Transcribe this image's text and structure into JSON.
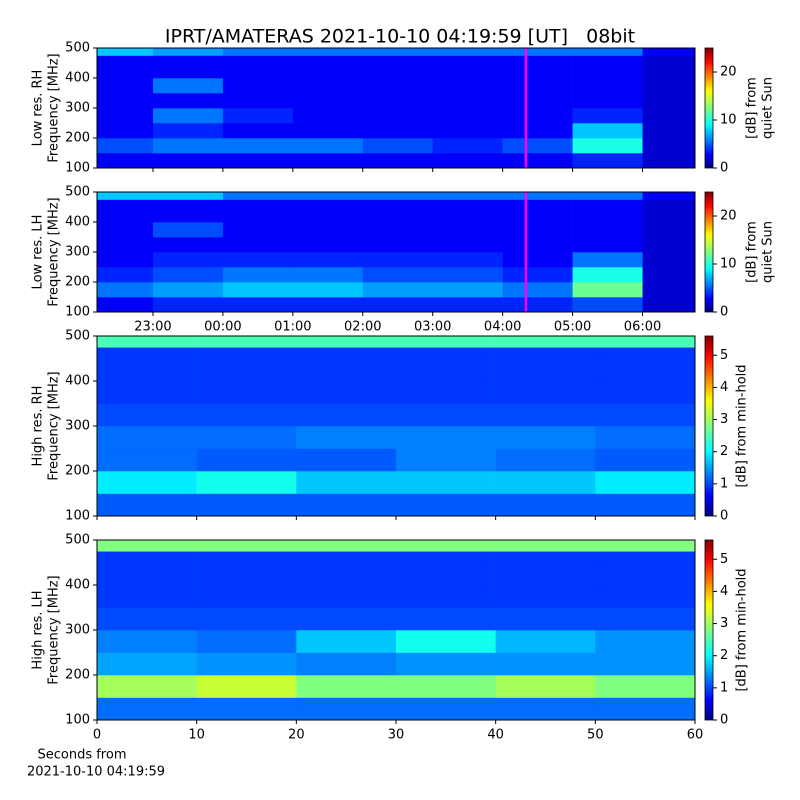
{
  "title": "IPRT/AMATERAS 2021-10-10 04:19:59 [UT]   08bit",
  "xlabel": [
    "Seconds from",
    "2021-10-10 04:19:59"
  ],
  "chart_data": [
    {
      "type": "heatmap",
      "ylabel": [
        "Low res. RH",
        "Frequency [MHz]"
      ],
      "colorbar_label": [
        "[dB] from",
        "quiet Sun"
      ],
      "xlim": [
        22.2,
        30.75
      ],
      "xticks": [
        23,
        24,
        25,
        26,
        27,
        28,
        29,
        30
      ],
      "xtick_labels": false,
      "ylim": [
        100,
        500
      ],
      "yticks": [
        100,
        200,
        300,
        400,
        500
      ],
      "clim": [
        0,
        25
      ],
      "cticks": [
        0,
        10,
        20
      ],
      "colormap": "jet",
      "vline_x": 28.333,
      "vline_color": "#ff00ff",
      "x_edges": [
        22.2,
        23,
        24,
        25,
        26,
        27,
        28,
        29,
        30,
        30.75
      ],
      "y_edges": [
        100,
        150,
        200,
        250,
        300,
        350,
        400,
        450,
        475,
        500
      ],
      "z": [
        [
          3,
          3,
          3,
          3,
          3,
          3,
          3,
          4,
          2
        ],
        [
          5,
          6,
          6,
          6,
          5,
          4,
          5,
          10,
          2
        ],
        [
          3,
          4,
          3,
          3,
          3,
          3,
          3,
          8,
          2
        ],
        [
          3,
          6,
          4,
          3,
          3,
          3,
          3,
          4,
          2
        ],
        [
          3,
          3,
          3,
          3,
          3,
          3,
          3,
          3,
          2
        ],
        [
          3,
          6,
          3,
          3,
          3,
          3,
          3,
          3,
          2
        ],
        [
          3,
          3,
          3,
          3,
          3,
          3,
          3,
          3,
          2
        ],
        [
          3,
          3,
          3,
          3,
          3,
          3,
          3,
          3,
          2
        ],
        [
          8,
          7,
          6,
          6,
          6,
          6,
          6,
          6,
          3
        ]
      ]
    },
    {
      "type": "heatmap",
      "ylabel": [
        "Low res. LH",
        "Frequency [MHz]"
      ],
      "colorbar_label": [
        "[dB] from",
        "quiet Sun"
      ],
      "xlim": [
        22.2,
        30.75
      ],
      "xticks": [
        {
          "value": 23,
          "label": "23:00"
        },
        {
          "value": 24,
          "label": "00:00"
        },
        {
          "value": 25,
          "label": "01:00"
        },
        {
          "value": 26,
          "label": "02:00"
        },
        {
          "value": 27,
          "label": "03:00"
        },
        {
          "value": 28,
          "label": "04:00"
        },
        {
          "value": 29,
          "label": "05:00"
        },
        {
          "value": 30,
          "label": "06:00"
        }
      ],
      "xtick_labels": true,
      "ylim": [
        100,
        500
      ],
      "yticks": [
        100,
        200,
        300,
        400,
        500
      ],
      "clim": [
        0,
        25
      ],
      "cticks": [
        0,
        10,
        20
      ],
      "colormap": "jet",
      "vline_x": 28.333,
      "vline_color": "#ff00ff",
      "x_edges": [
        22.2,
        23,
        24,
        25,
        26,
        27,
        28,
        29,
        30,
        30.75
      ],
      "y_edges": [
        100,
        150,
        200,
        250,
        300,
        350,
        400,
        450,
        475,
        500
      ],
      "z": [
        [
          3,
          4,
          4,
          4,
          4,
          4,
          4,
          5,
          2
        ],
        [
          6,
          7,
          8,
          8,
          7,
          7,
          6,
          12,
          2
        ],
        [
          4,
          5,
          6,
          6,
          5,
          5,
          4,
          10,
          2
        ],
        [
          3,
          4,
          4,
          4,
          4,
          4,
          3,
          6,
          2
        ],
        [
          3,
          3,
          3,
          3,
          3,
          3,
          3,
          3,
          2
        ],
        [
          3,
          5,
          3,
          3,
          3,
          3,
          3,
          3,
          2
        ],
        [
          3,
          3,
          3,
          3,
          3,
          3,
          3,
          3,
          2
        ],
        [
          3,
          3,
          3,
          3,
          3,
          3,
          3,
          3,
          2
        ],
        [
          8,
          8,
          6,
          6,
          6,
          6,
          6,
          6,
          3
        ]
      ]
    },
    {
      "type": "heatmap",
      "ylabel": [
        "High res. RH",
        "Frequency [MHz]"
      ],
      "colorbar_label": [
        "[dB] from min-hold"
      ],
      "xlim": [
        0,
        60
      ],
      "xticks": [
        0,
        10,
        20,
        30,
        40,
        50,
        60
      ],
      "xtick_labels": false,
      "ylim": [
        100,
        500
      ],
      "yticks": [
        100,
        200,
        300,
        400,
        500
      ],
      "clim": [
        0,
        5.6
      ],
      "cticks": [
        0,
        1,
        2,
        3,
        4,
        5
      ],
      "colormap": "jet",
      "x_edges": [
        0,
        10,
        20,
        30,
        40,
        50,
        60
      ],
      "y_edges": [
        100,
        150,
        200,
        250,
        300,
        350,
        400,
        450,
        475,
        500
      ],
      "z": [
        [
          1.2,
          1.2,
          1.2,
          1.2,
          1.2,
          1.2
        ],
        [
          2.0,
          2.2,
          1.8,
          1.8,
          1.8,
          2.0
        ],
        [
          1.3,
          1.2,
          1.2,
          1.4,
          1.3,
          1.2
        ],
        [
          1.3,
          1.3,
          1.4,
          1.4,
          1.4,
          1.3
        ],
        [
          1.1,
          1.1,
          1.1,
          1.1,
          1.1,
          1.1
        ],
        [
          1.0,
          1.0,
          1.0,
          1.0,
          1.0,
          1.0
        ],
        [
          1.0,
          1.0,
          1.0,
          1.0,
          1.0,
          1.0
        ],
        [
          1.0,
          1.0,
          1.0,
          1.0,
          1.0,
          1.0
        ],
        [
          2.5,
          2.5,
          2.5,
          2.5,
          2.5,
          2.5
        ]
      ]
    },
    {
      "type": "heatmap",
      "ylabel": [
        "High res. LH",
        "Frequency [MHz]"
      ],
      "colorbar_label": [
        "[dB] from min-hold"
      ],
      "xlim": [
        0,
        60
      ],
      "xticks": [
        0,
        10,
        20,
        30,
        40,
        50,
        60
      ],
      "xtick_labels": true,
      "ylim": [
        100,
        500
      ],
      "yticks": [
        100,
        200,
        300,
        400,
        500
      ],
      "clim": [
        0,
        5.6
      ],
      "cticks": [
        0,
        1,
        2,
        3,
        4,
        5
      ],
      "colormap": "jet",
      "x_edges": [
        0,
        10,
        20,
        30,
        40,
        50,
        60
      ],
      "y_edges": [
        100,
        150,
        200,
        250,
        300,
        350,
        400,
        450,
        475,
        500
      ],
      "z": [
        [
          1.3,
          1.3,
          1.3,
          1.3,
          1.3,
          1.3
        ],
        [
          3.0,
          3.2,
          2.8,
          2.8,
          3.0,
          2.8
        ],
        [
          1.6,
          1.5,
          1.4,
          1.5,
          1.5,
          1.5
        ],
        [
          1.4,
          1.3,
          1.8,
          2.2,
          1.7,
          1.5
        ],
        [
          1.1,
          1.1,
          1.1,
          1.1,
          1.1,
          1.1
        ],
        [
          1.0,
          1.0,
          1.0,
          1.0,
          1.0,
          1.0
        ],
        [
          1.0,
          1.0,
          1.0,
          1.0,
          1.0,
          1.0
        ],
        [
          1.0,
          1.0,
          1.0,
          1.0,
          1.0,
          1.0
        ],
        [
          2.8,
          2.8,
          2.8,
          2.8,
          2.8,
          2.8
        ]
      ]
    }
  ]
}
